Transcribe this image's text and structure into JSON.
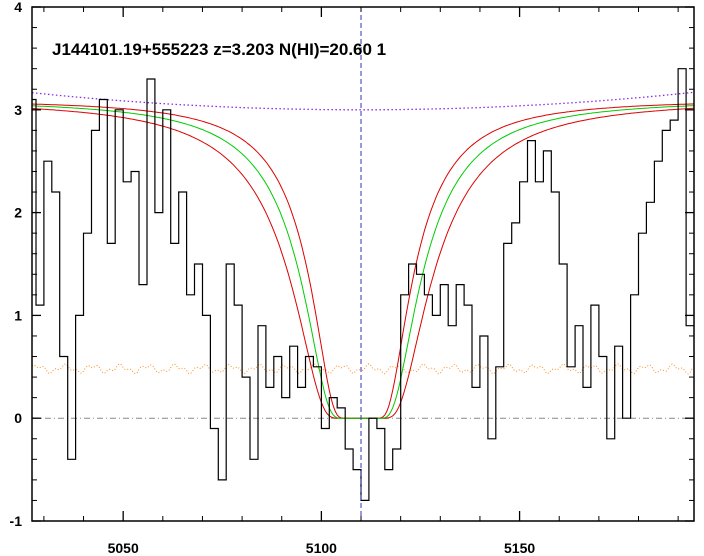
{
  "chart_data": {
    "type": "line",
    "title": "J144101.19+555223 z=3.203 N(HI)=20.60 1",
    "xlabel": "",
    "ylabel": "",
    "xlim": [
      5027,
      5194
    ],
    "ylim": [
      -1,
      4
    ],
    "x_ticks": [
      5050,
      5100,
      5150
    ],
    "y_ticks": [
      -1,
      0,
      1,
      2,
      3,
      4
    ],
    "grid": false,
    "marker_x": 5110,
    "zero_level": 0,
    "colors": {
      "flux": "#000000",
      "fit": "#00cc00",
      "fit_bounds": "#dd0000",
      "continuum": "#8a2be2",
      "error": "#ff8c1a",
      "marker": "#3333cc",
      "zero": "#888888"
    },
    "flux": {
      "x": [
        5027,
        5029,
        5031,
        5033,
        5035,
        5037,
        5039,
        5041,
        5043,
        5045,
        5047,
        5049,
        5051,
        5053,
        5055,
        5057,
        5059,
        5061,
        5063,
        5065,
        5067,
        5069,
        5071,
        5073,
        5075,
        5077,
        5079,
        5081,
        5083,
        5085,
        5087,
        5089,
        5091,
        5093,
        5095,
        5097,
        5099,
        5101,
        5103,
        5105,
        5107,
        5109,
        5111,
        5113,
        5115,
        5117,
        5119,
        5121,
        5123,
        5125,
        5127,
        5129,
        5131,
        5133,
        5135,
        5137,
        5139,
        5141,
        5143,
        5145,
        5147,
        5149,
        5151,
        5153,
        5155,
        5157,
        5159,
        5161,
        5163,
        5165,
        5167,
        5169,
        5171,
        5173,
        5175,
        5177,
        5179,
        5181,
        5183,
        5185,
        5187,
        5189,
        5191,
        5193
      ],
      "y": [
        3.1,
        1.1,
        2.5,
        2.2,
        0.6,
        -0.4,
        1.0,
        1.8,
        2.8,
        3.1,
        1.7,
        3.0,
        2.3,
        2.4,
        1.3,
        3.3,
        2.0,
        3.0,
        1.7,
        2.2,
        1.2,
        1.5,
        1.0,
        -0.1,
        -0.6,
        1.5,
        1.1,
        0.4,
        -0.4,
        0.9,
        0.3,
        0.6,
        0.2,
        0.7,
        0.3,
        0.6,
        0.5,
        -0.1,
        0.2,
        0.1,
        -0.3,
        -0.5,
        -0.8,
        0.0,
        -0.1,
        -0.5,
        -0.3,
        1.2,
        1.5,
        1.4,
        1.2,
        1.0,
        1.3,
        0.9,
        1.3,
        1.1,
        0.3,
        0.8,
        -0.2,
        0.5,
        1.7,
        1.9,
        2.3,
        2.7,
        2.3,
        2.6,
        2.2,
        1.5,
        0.5,
        0.9,
        0.3,
        1.1,
        0.6,
        -0.2,
        0.7,
        0.0,
        1.2,
        1.8,
        2.1,
        2.5,
        2.8,
        2.9,
        3.4,
        0.9
      ]
    },
    "fit_center": 5110,
    "fit_continuum": 3.1,
    "fit_width": 14,
    "fit_bounds_width": [
      12,
      16.5
    ]
  }
}
